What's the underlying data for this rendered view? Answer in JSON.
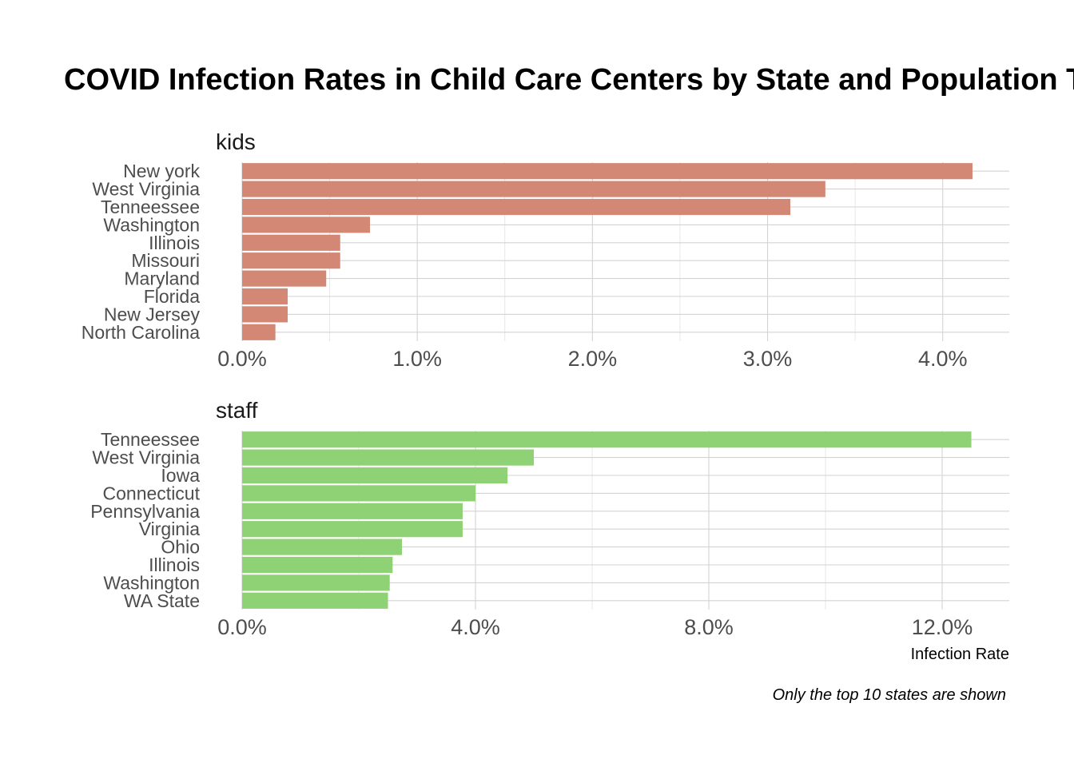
{
  "chart_data": {
    "type": "bar",
    "orientation": "horizontal",
    "title": "COVID Infection Rates in Child Care Centers by State and Population Type",
    "xlabel": "Infection Rate",
    "caption": "Only the top 10 states are shown",
    "colors": {
      "kids": "#D38875",
      "staff": "#8FD175"
    },
    "panels": [
      {
        "facet": "kids",
        "categories": [
          "New york",
          "West Virginia",
          "Tenneessee",
          "Washington",
          "Illinois",
          "Missouri",
          "Maryland",
          "Florida",
          "New Jersey",
          "North Carolina"
        ],
        "values": [
          4.17,
          3.33,
          3.13,
          0.73,
          0.56,
          0.56,
          0.48,
          0.26,
          0.26,
          0.19
        ],
        "xlim": [
          0,
          4.38
        ],
        "xticks": [
          0,
          1,
          2,
          3,
          4
        ],
        "xtick_labels": [
          "0.0%",
          "1.0%",
          "2.0%",
          "3.0%",
          "4.0%"
        ]
      },
      {
        "facet": "staff",
        "categories": [
          "Tenneessee",
          "West Virginia",
          "Iowa",
          "Connecticut",
          "Pennsylvania",
          "Virginia",
          "Ohio",
          "Illinois",
          "Washington",
          "WA State"
        ],
        "values": [
          12.5,
          5.0,
          4.55,
          4.0,
          3.78,
          3.78,
          2.74,
          2.58,
          2.53,
          2.5
        ],
        "xlim": [
          0,
          13.15
        ],
        "xticks": [
          0,
          4,
          8,
          12
        ],
        "xtick_labels": [
          "0.0%",
          "4.0%",
          "8.0%",
          "12.0%"
        ]
      }
    ]
  }
}
